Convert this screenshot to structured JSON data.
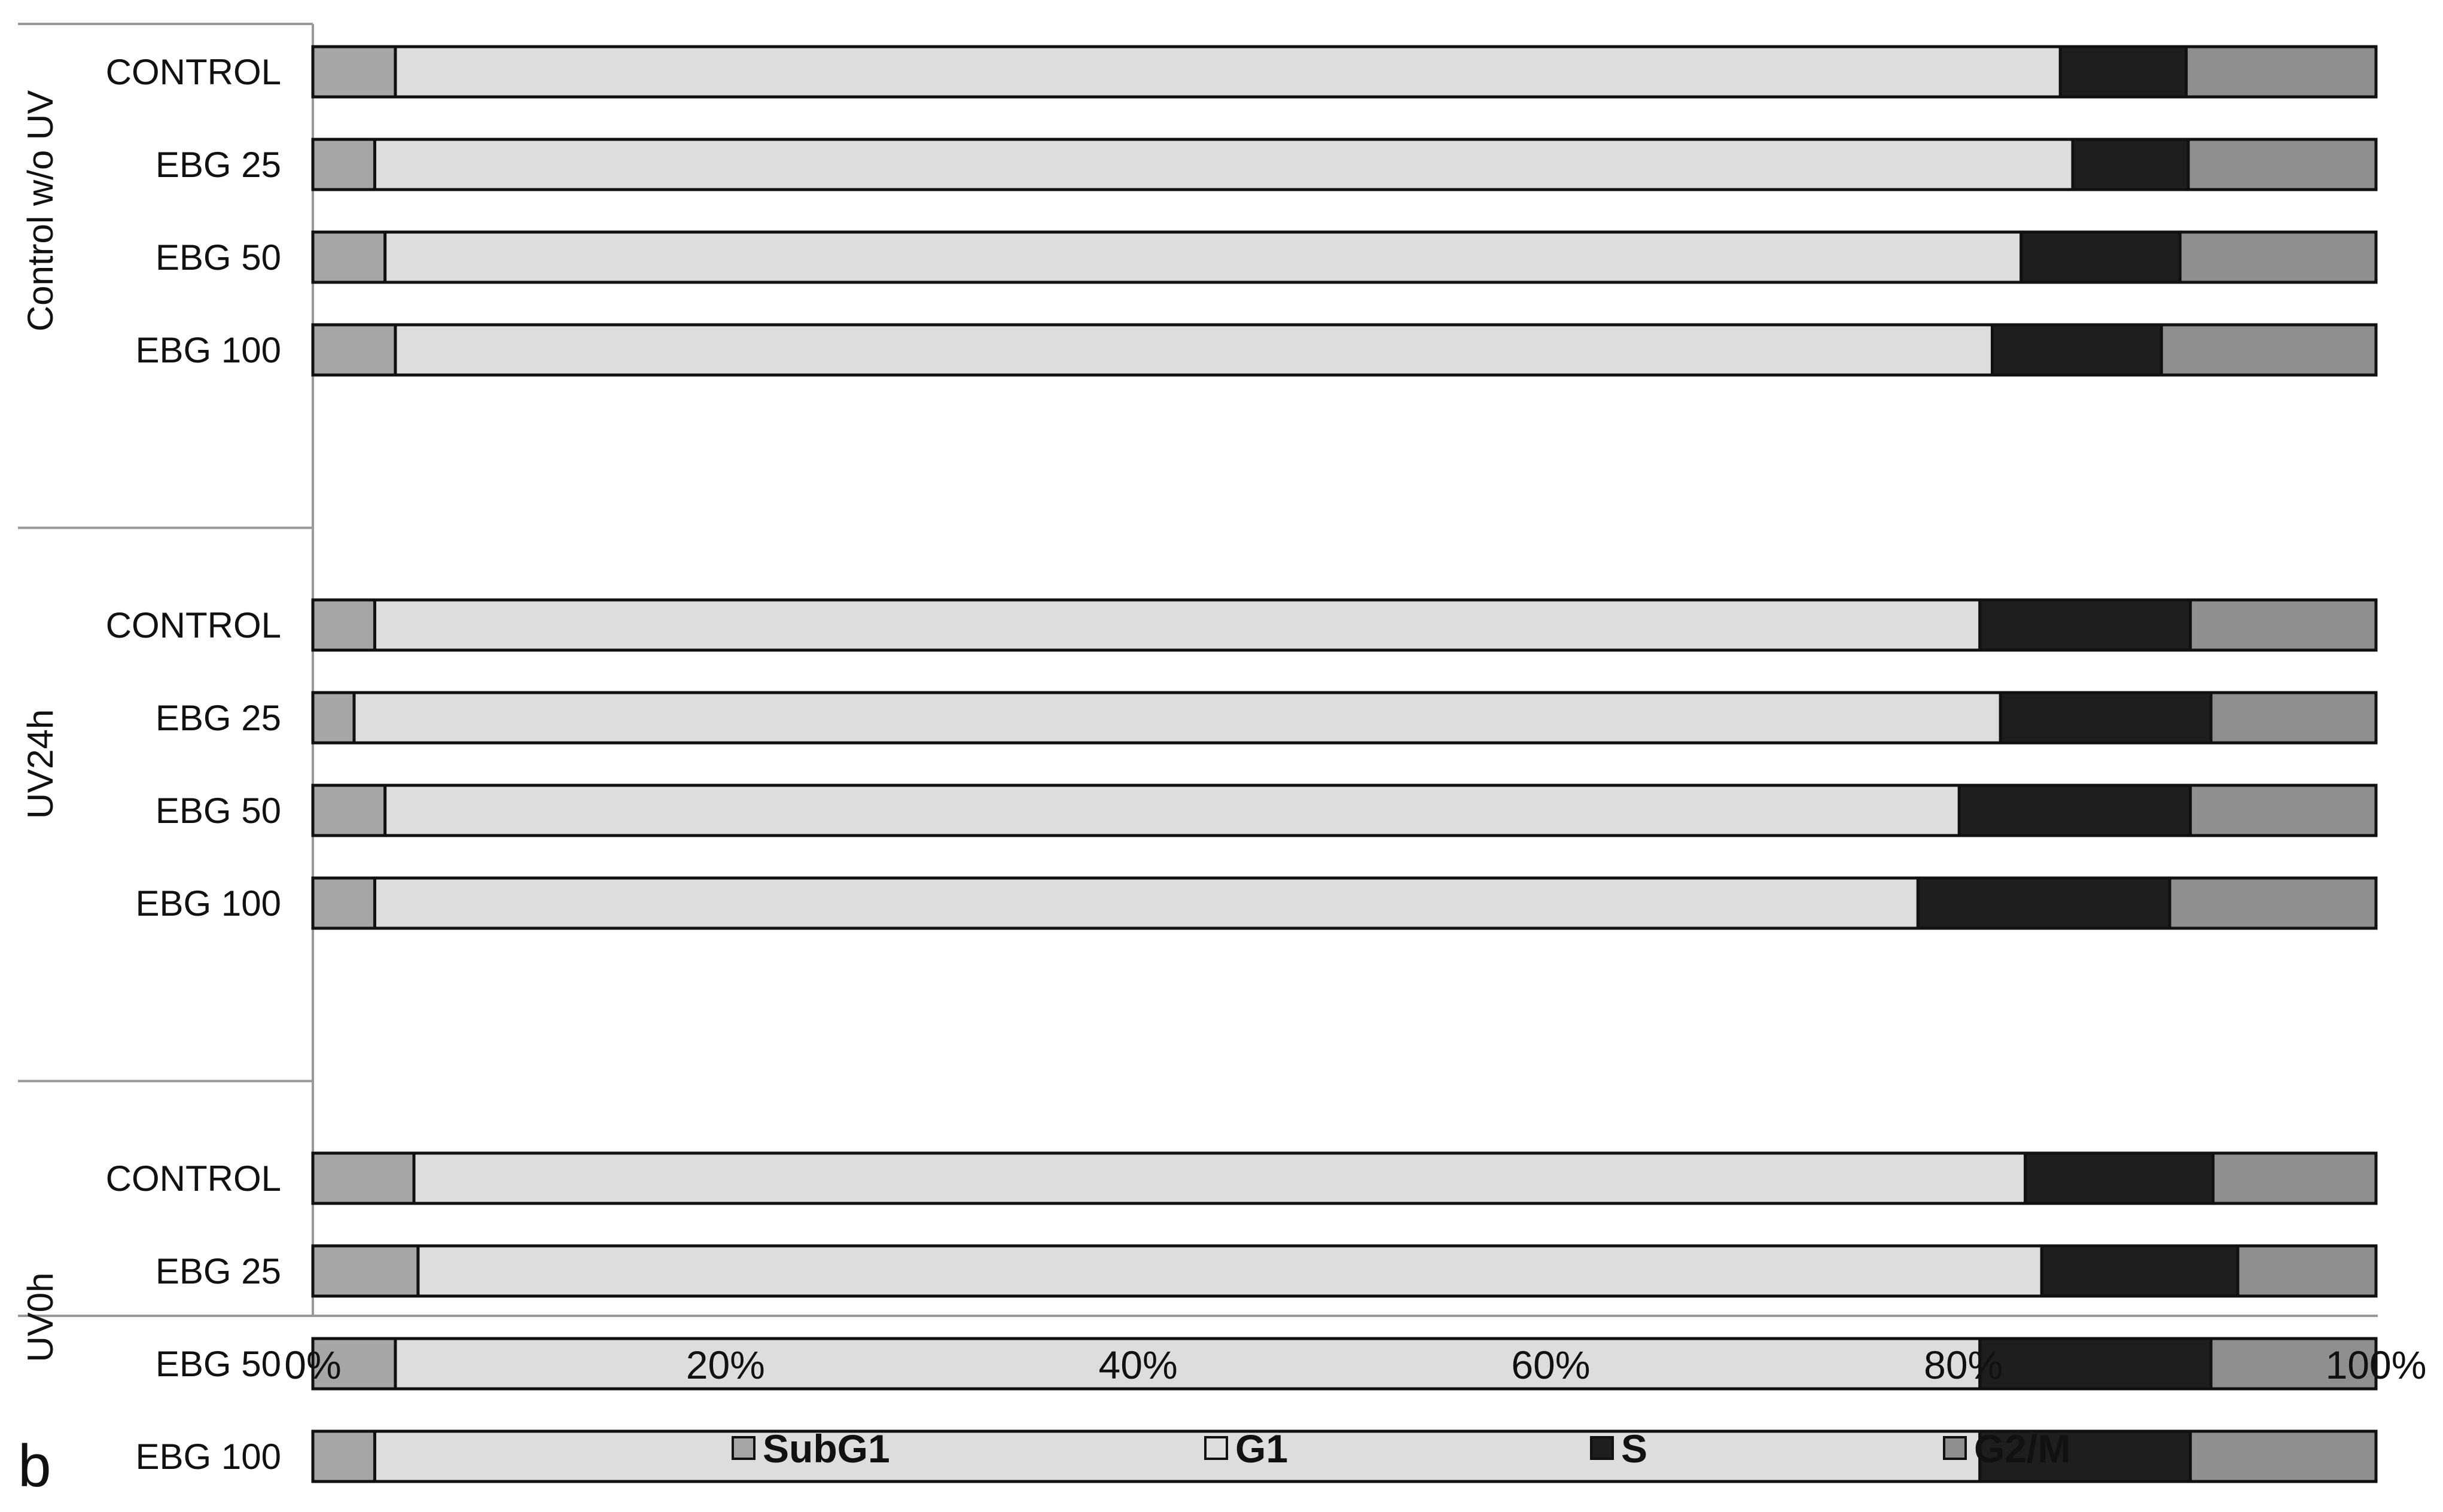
{
  "panel_label": "b",
  "chart_data": {
    "type": "bar",
    "orientation": "horizontal",
    "stacked": "percent",
    "xlim": [
      0,
      100
    ],
    "x_ticks": [
      "0%",
      "20%",
      "40%",
      "60%",
      "80%",
      "100%"
    ],
    "legend_position": "bottom",
    "series": [
      {
        "name": "SubG1",
        "color": "#a6a6a6"
      },
      {
        "name": "G1",
        "color": "#dddddd"
      },
      {
        "name": "S",
        "color": "#1e1e1e"
      },
      {
        "name": "G2/M",
        "color": "#8f8f8f"
      }
    ],
    "groups": [
      {
        "name": "Control w/o UV",
        "rows": [
          {
            "label": "CONTROL",
            "values": [
              4.0,
              80.7,
              6.1,
              9.2
            ]
          },
          {
            "label": "EBG 25",
            "values": [
              3.0,
              82.3,
              5.6,
              9.1
            ]
          },
          {
            "label": "EBG 50",
            "values": [
              3.5,
              79.3,
              7.7,
              9.5
            ]
          },
          {
            "label": "EBG 100",
            "values": [
              4.0,
              77.4,
              8.2,
              10.4
            ]
          }
        ]
      },
      {
        "name": "UV24h",
        "rows": [
          {
            "label": "CONTROL",
            "values": [
              3.0,
              77.8,
              10.2,
              9.0
            ]
          },
          {
            "label": "EBG 25",
            "values": [
              2.0,
              79.8,
              10.2,
              8.0
            ]
          },
          {
            "label": "EBG 50",
            "values": [
              3.5,
              76.3,
              11.2,
              9.0
            ]
          },
          {
            "label": "EBG 100",
            "values": [
              3.0,
              74.8,
              12.2,
              10.0
            ]
          }
        ]
      },
      {
        "name": "UV0h",
        "rows": [
          {
            "label": "CONTROL",
            "values": [
              4.9,
              78.1,
              9.1,
              7.9
            ]
          },
          {
            "label": "EBG 25",
            "values": [
              5.1,
              78.7,
              9.5,
              6.7
            ]
          },
          {
            "label": "EBG 50",
            "values": [
              4.0,
              76.8,
              11.2,
              8.0
            ]
          },
          {
            "label": "EBG 100",
            "values": [
              3.0,
              77.8,
              10.2,
              9.0
            ]
          }
        ]
      }
    ]
  }
}
